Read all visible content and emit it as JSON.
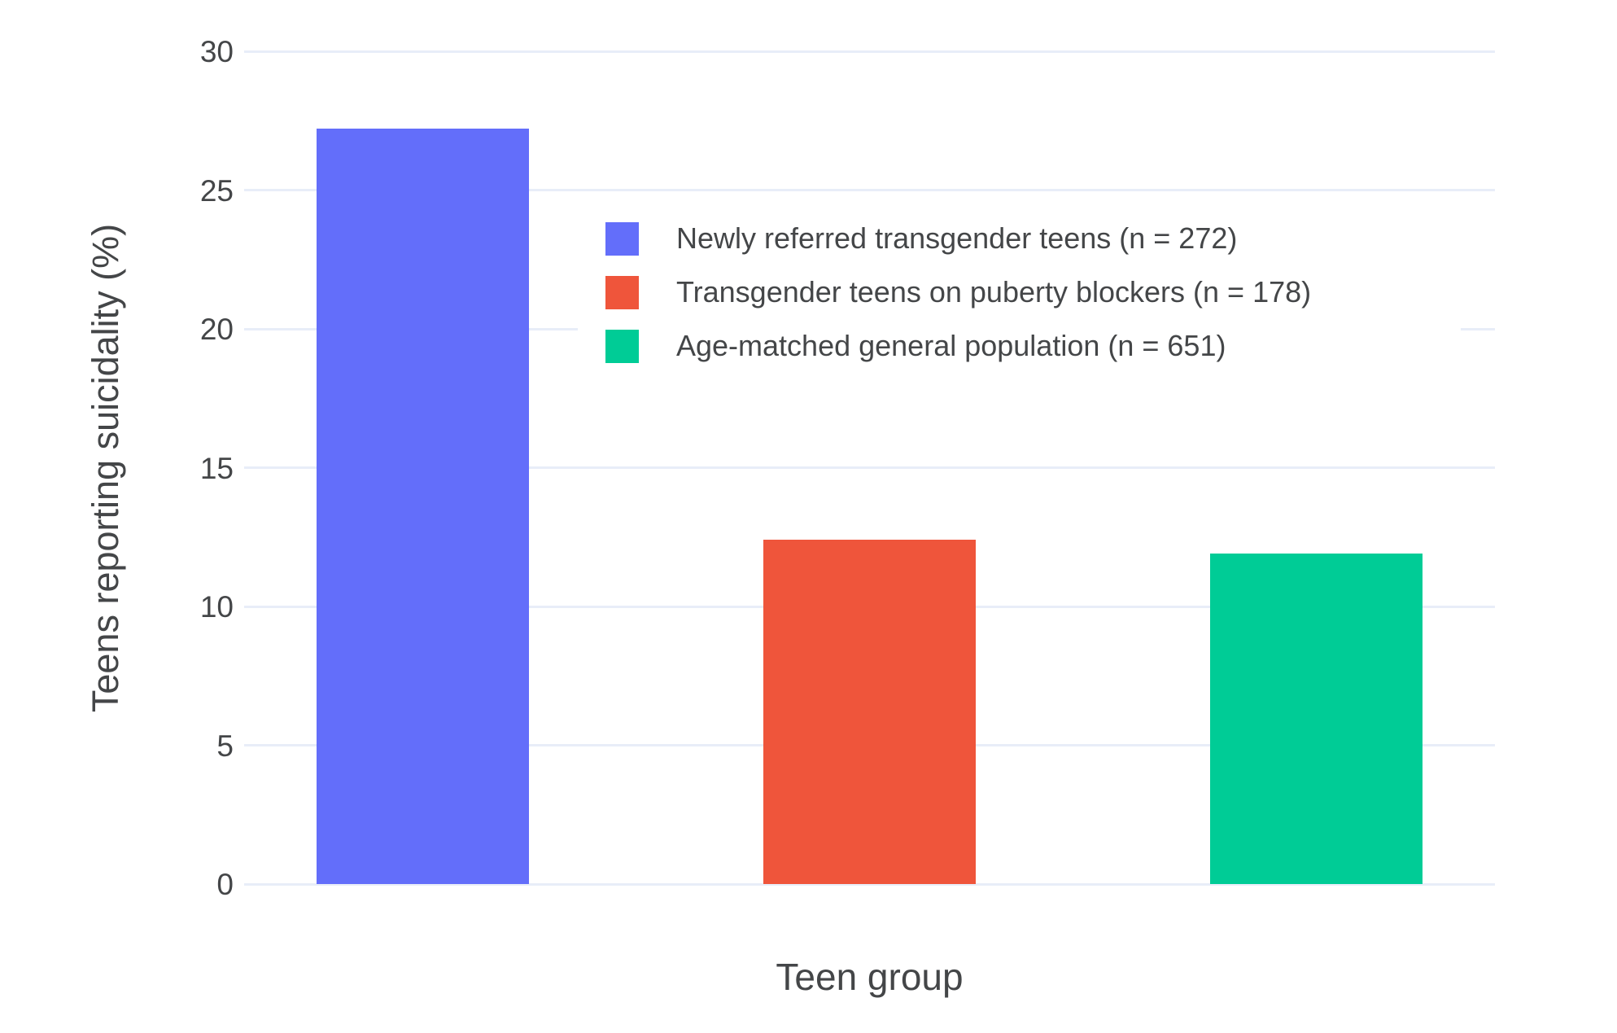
{
  "chart_data": {
    "type": "bar",
    "title": "",
    "xlabel": "Teen group",
    "ylabel": "Teens reporting suicidality (%)",
    "categories": [
      "Newly referred transgender teens (n = 272)",
      "Transgender teens on puberty blockers (n = 178)",
      "Age-matched general population (n = 651)"
    ],
    "series": [
      {
        "name": "Newly referred transgender teens (n = 272)",
        "value": 27.2,
        "color": "#636EFA"
      },
      {
        "name": "Transgender teens on puberty blockers (n = 178)",
        "value": 12.4,
        "color": "#EF553B"
      },
      {
        "name": "Age-matched general population (n = 651)",
        "value": 11.9,
        "color": "#00CC96"
      }
    ],
    "y_ticks": [
      0,
      5,
      10,
      15,
      20,
      25,
      30
    ],
    "ylim": [
      0,
      30
    ],
    "grid": true,
    "legend_position": "inside-top-right",
    "x_tick_labels_shown": false
  },
  "colors": {
    "background": "#FFFFFF",
    "grid": "#E8EDF8",
    "text": "#444648",
    "legend_background": "#FFFFFF"
  }
}
